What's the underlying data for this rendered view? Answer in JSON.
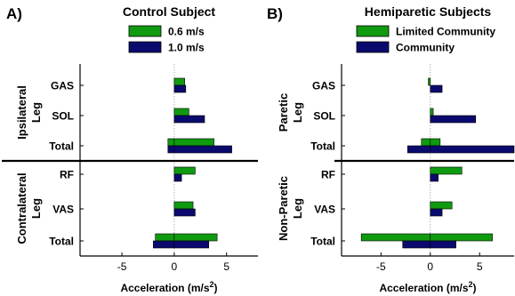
{
  "chart_data": [
    {
      "type": "bar",
      "orientation": "horizontal",
      "panel_label": "A)",
      "title": "Control Subject",
      "xlabel": "Acceleration (m/s",
      "xlabel_sup": "2",
      "xlabel_close": ")",
      "xlim": [
        -9,
        8
      ],
      "xticks": [
        -5,
        0,
        5
      ],
      "xtick_labels": [
        "-5",
        "0",
        "5"
      ],
      "groups": [
        {
          "label_line1": "Ipsilateral",
          "label_line2": "Leg",
          "rows": [
            "GAS",
            "SOL",
            "Total"
          ]
        },
        {
          "label_line1": "Contralateral",
          "label_line2": "Leg",
          "rows": [
            "RF",
            "VAS",
            "Total"
          ]
        }
      ],
      "categories": [
        "GAS",
        "SOL",
        "Total",
        "RF",
        "VAS",
        "Total"
      ],
      "series": [
        {
          "name": "0.6 m/s",
          "color": "#109a10",
          "values": [
            1.0,
            1.4,
            [
              -0.6,
              3.8
            ],
            2.0,
            1.8,
            [
              -1.8,
              4.1
            ]
          ]
        },
        {
          "name": "1.0 m/s",
          "color": "#0a0a6e",
          "values": [
            1.1,
            2.9,
            [
              -0.6,
              5.5
            ],
            0.7,
            2.0,
            [
              -2.0,
              3.3
            ]
          ]
        }
      ]
    },
    {
      "type": "bar",
      "orientation": "horizontal",
      "panel_label": "B)",
      "title": "Hemiparetic Subjects",
      "xlabel": "Acceleration (m/s",
      "xlabel_sup": "2",
      "xlabel_close": ")",
      "xlim": [
        -9,
        8.5
      ],
      "xticks": [
        -5,
        0,
        5
      ],
      "xtick_labels": [
        "-5",
        "0",
        "5"
      ],
      "groups": [
        {
          "label_line1": "Paretic",
          "label_line2": "Leg",
          "rows": [
            "GAS",
            "SOL",
            "Total"
          ]
        },
        {
          "label_line1": "Non-Paretic",
          "label_line2": "Leg",
          "rows": [
            "RF",
            "VAS",
            "Total"
          ]
        }
      ],
      "categories": [
        "GAS",
        "SOL",
        "Total",
        "RF",
        "VAS",
        "Total"
      ],
      "series": [
        {
          "name": "Limited Community",
          "color": "#109a10",
          "values": [
            -0.2,
            0.3,
            [
              -0.9,
              1.0
            ],
            3.2,
            2.2,
            [
              -7.0,
              6.3
            ]
          ]
        },
        {
          "name": "Community",
          "color": "#0a0a6e",
          "values": [
            1.2,
            4.6,
            [
              -2.3,
              8.5
            ],
            0.8,
            1.2,
            [
              -2.8,
              2.6
            ]
          ]
        }
      ]
    }
  ]
}
